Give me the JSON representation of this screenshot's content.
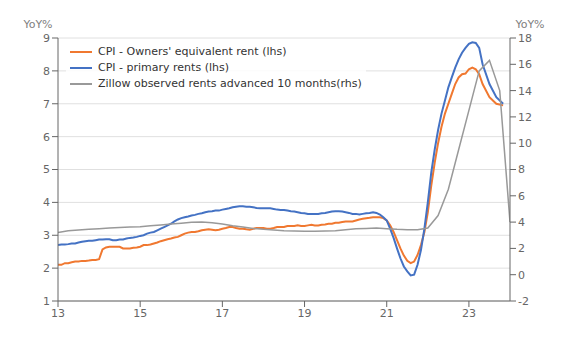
{
  "chart_data": {
    "type": "line",
    "ylabel": "YoY%",
    "y2label": "YoY%",
    "xlim": [
      13,
      24
    ],
    "ylim": [
      1,
      9
    ],
    "y2lim": [
      -2,
      18
    ],
    "xticks": [
      13,
      15,
      17,
      19,
      21,
      23
    ],
    "yticks": [
      1,
      2,
      3,
      4,
      5,
      6,
      7,
      8,
      9
    ],
    "y2ticks": [
      -2,
      0,
      2,
      4,
      6,
      8,
      10,
      12,
      14,
      16,
      18
    ],
    "grid": true,
    "legend": "upper left",
    "series": [
      {
        "name": "CPI - Owners' equivalent rent (lhs)",
        "color": "#f07830",
        "axis": "y",
        "x": [
          13.0,
          13.083,
          13.167,
          13.25,
          13.333,
          13.417,
          13.5,
          13.583,
          13.667,
          13.75,
          13.833,
          13.917,
          14.0,
          14.083,
          14.167,
          14.25,
          14.333,
          14.417,
          14.5,
          14.583,
          14.667,
          14.75,
          14.833,
          14.917,
          15.0,
          15.083,
          15.167,
          15.25,
          15.333,
          15.417,
          15.5,
          15.583,
          15.667,
          15.75,
          15.833,
          15.917,
          16.0,
          16.083,
          16.167,
          16.25,
          16.333,
          16.417,
          16.5,
          16.583,
          16.667,
          16.75,
          16.833,
          16.917,
          17.0,
          17.083,
          17.167,
          17.25,
          17.333,
          17.417,
          17.5,
          17.583,
          17.667,
          17.75,
          17.833,
          17.917,
          18.0,
          18.083,
          18.167,
          18.25,
          18.333,
          18.417,
          18.5,
          18.583,
          18.667,
          18.75,
          18.833,
          18.917,
          19.0,
          19.083,
          19.167,
          19.25,
          19.333,
          19.417,
          19.5,
          19.583,
          19.667,
          19.75,
          19.833,
          19.917,
          20.0,
          20.083,
          20.167,
          20.25,
          20.333,
          20.417,
          20.5,
          20.583,
          20.667,
          20.75,
          20.833,
          20.917,
          21.0,
          21.083,
          21.167,
          21.25,
          21.333,
          21.417,
          21.5,
          21.583,
          21.667,
          21.75,
          21.833,
          21.917,
          22.0,
          22.083,
          22.167,
          22.25,
          22.333,
          22.417,
          22.5,
          22.583,
          22.667,
          22.75,
          22.833,
          22.917,
          23.0,
          23.083,
          23.167,
          23.25,
          23.333,
          23.5,
          23.667,
          23.833
        ],
        "values": [
          2.1,
          2.1,
          2.15,
          2.15,
          2.18,
          2.2,
          2.2,
          2.22,
          2.22,
          2.23,
          2.25,
          2.25,
          2.27,
          2.57,
          2.63,
          2.65,
          2.65,
          2.65,
          2.65,
          2.6,
          2.6,
          2.6,
          2.62,
          2.63,
          2.65,
          2.7,
          2.7,
          2.72,
          2.75,
          2.78,
          2.82,
          2.85,
          2.88,
          2.9,
          2.93,
          2.95,
          3.0,
          3.05,
          3.08,
          3.1,
          3.1,
          3.12,
          3.15,
          3.17,
          3.18,
          3.17,
          3.15,
          3.17,
          3.2,
          3.22,
          3.25,
          3.25,
          3.22,
          3.2,
          3.2,
          3.18,
          3.17,
          3.2,
          3.22,
          3.22,
          3.22,
          3.2,
          3.2,
          3.22,
          3.25,
          3.25,
          3.25,
          3.28,
          3.28,
          3.28,
          3.3,
          3.28,
          3.28,
          3.3,
          3.32,
          3.3,
          3.3,
          3.32,
          3.33,
          3.35,
          3.35,
          3.38,
          3.38,
          3.4,
          3.42,
          3.42,
          3.42,
          3.45,
          3.48,
          3.5,
          3.52,
          3.53,
          3.55,
          3.55,
          3.55,
          3.52,
          3.45,
          3.3,
          3.1,
          2.85,
          2.6,
          2.38,
          2.22,
          2.15,
          2.2,
          2.4,
          2.7,
          3.1,
          3.7,
          4.5,
          5.2,
          5.8,
          6.3,
          6.7,
          7.0,
          7.3,
          7.6,
          7.8,
          7.9,
          7.92,
          8.05,
          8.1,
          8.05,
          7.9,
          7.6,
          7.2,
          7.0,
          6.95
        ]
      },
      {
        "name": "CPI - primary rents (lhs)",
        "color": "#4472c4",
        "axis": "y",
        "x": [
          13.0,
          13.083,
          13.167,
          13.25,
          13.333,
          13.417,
          13.5,
          13.583,
          13.667,
          13.75,
          13.833,
          13.917,
          14.0,
          14.083,
          14.167,
          14.25,
          14.333,
          14.417,
          14.5,
          14.583,
          14.667,
          14.75,
          14.833,
          14.917,
          15.0,
          15.083,
          15.167,
          15.25,
          15.333,
          15.417,
          15.5,
          15.583,
          15.667,
          15.75,
          15.833,
          15.917,
          16.0,
          16.083,
          16.167,
          16.25,
          16.333,
          16.417,
          16.5,
          16.583,
          16.667,
          16.75,
          16.833,
          16.917,
          17.0,
          17.083,
          17.167,
          17.25,
          17.333,
          17.417,
          17.5,
          17.583,
          17.667,
          17.75,
          17.833,
          17.917,
          18.0,
          18.083,
          18.167,
          18.25,
          18.333,
          18.417,
          18.5,
          18.583,
          18.667,
          18.75,
          18.833,
          18.917,
          19.0,
          19.083,
          19.167,
          19.25,
          19.333,
          19.417,
          19.5,
          19.583,
          19.667,
          19.75,
          19.833,
          19.917,
          20.0,
          20.083,
          20.167,
          20.25,
          20.333,
          20.417,
          20.5,
          20.583,
          20.667,
          20.75,
          20.833,
          20.917,
          21.0,
          21.083,
          21.167,
          21.25,
          21.333,
          21.417,
          21.5,
          21.583,
          21.667,
          21.75,
          21.833,
          21.917,
          22.0,
          22.083,
          22.167,
          22.25,
          22.333,
          22.417,
          22.5,
          22.583,
          22.667,
          22.75,
          22.833,
          22.917,
          23.0,
          23.083,
          23.167,
          23.25,
          23.333,
          23.5,
          23.667,
          23.833
        ],
        "values": [
          2.7,
          2.72,
          2.72,
          2.73,
          2.75,
          2.75,
          2.78,
          2.8,
          2.82,
          2.83,
          2.83,
          2.85,
          2.87,
          2.87,
          2.88,
          2.88,
          2.85,
          2.85,
          2.87,
          2.87,
          2.9,
          2.92,
          2.93,
          2.95,
          2.98,
          3.0,
          3.05,
          3.08,
          3.1,
          3.15,
          3.2,
          3.25,
          3.3,
          3.35,
          3.42,
          3.48,
          3.52,
          3.55,
          3.57,
          3.6,
          3.62,
          3.65,
          3.67,
          3.7,
          3.72,
          3.73,
          3.75,
          3.75,
          3.78,
          3.8,
          3.82,
          3.85,
          3.87,
          3.88,
          3.88,
          3.87,
          3.87,
          3.85,
          3.83,
          3.82,
          3.82,
          3.82,
          3.82,
          3.8,
          3.78,
          3.77,
          3.77,
          3.75,
          3.73,
          3.72,
          3.7,
          3.68,
          3.67,
          3.65,
          3.65,
          3.65,
          3.65,
          3.67,
          3.68,
          3.7,
          3.72,
          3.73,
          3.73,
          3.72,
          3.7,
          3.68,
          3.65,
          3.65,
          3.63,
          3.65,
          3.67,
          3.68,
          3.7,
          3.68,
          3.63,
          3.55,
          3.45,
          3.2,
          2.92,
          2.6,
          2.3,
          2.05,
          1.9,
          1.78,
          1.8,
          2.1,
          2.55,
          3.2,
          4.0,
          4.9,
          5.6,
          6.2,
          6.7,
          7.1,
          7.5,
          7.8,
          8.1,
          8.35,
          8.55,
          8.7,
          8.82,
          8.87,
          8.85,
          8.7,
          8.2,
          7.6,
          7.2,
          7.0
        ]
      },
      {
        "name": "Zillow observed rents advanced 10 months(rhs)",
        "color": "#999999",
        "axis": "y2",
        "x": [
          13.0,
          13.25,
          13.5,
          13.75,
          14.0,
          14.25,
          14.5,
          14.75,
          15.0,
          15.25,
          15.5,
          15.75,
          16.0,
          16.25,
          16.5,
          16.75,
          17.0,
          17.25,
          17.5,
          17.75,
          18.0,
          18.25,
          18.5,
          18.75,
          19.0,
          19.25,
          19.5,
          19.75,
          20.0,
          20.25,
          20.5,
          20.75,
          21.0,
          21.25,
          21.5,
          21.75,
          22.0,
          22.25,
          22.5,
          22.75,
          23.0,
          23.25,
          23.5,
          23.75,
          24.0
        ],
        "values": [
          3.2,
          3.35,
          3.4,
          3.45,
          3.5,
          3.55,
          3.58,
          3.62,
          3.65,
          3.72,
          3.78,
          3.85,
          3.92,
          3.98,
          4.0,
          3.95,
          3.85,
          3.72,
          3.62,
          3.52,
          3.45,
          3.4,
          3.35,
          3.32,
          3.3,
          3.3,
          3.32,
          3.35,
          3.42,
          3.5,
          3.52,
          3.55,
          3.5,
          3.45,
          3.42,
          3.42,
          3.55,
          4.5,
          6.5,
          9.5,
          12.5,
          15.5,
          16.3,
          14.0,
          4.0
        ]
      }
    ]
  }
}
